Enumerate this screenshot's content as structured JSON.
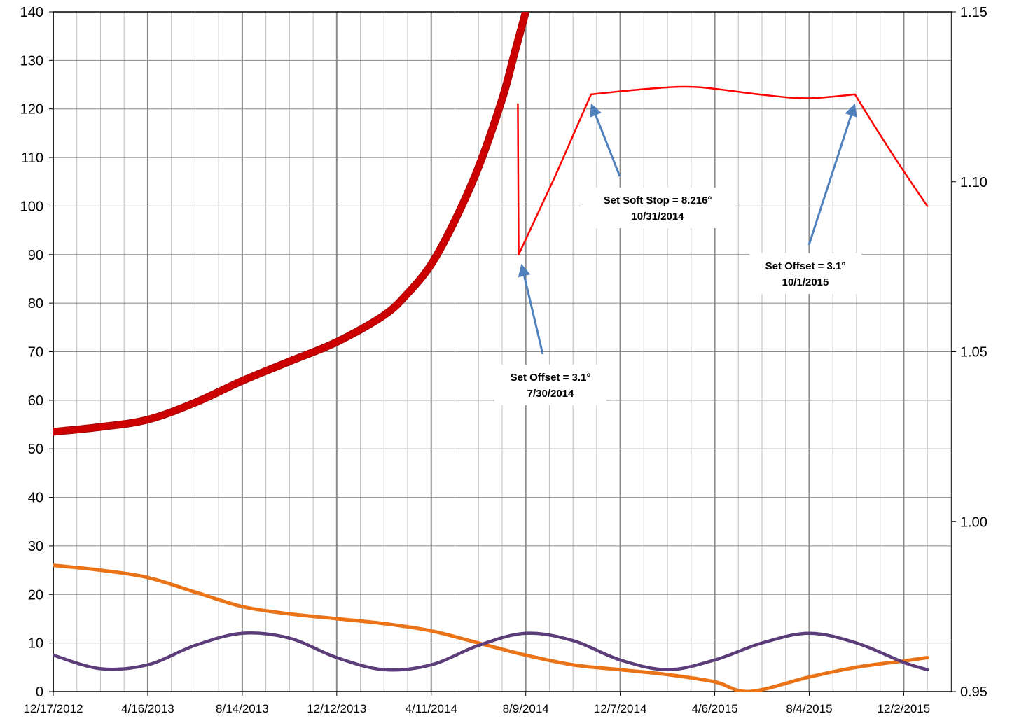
{
  "chart_data": {
    "type": "line",
    "title": "",
    "xlabel": "",
    "ylabel": "",
    "y2label": "",
    "grid": true,
    "legend": "none",
    "xlim": [
      "2012-12-17",
      "2016-02-01"
    ],
    "ylim": [
      0,
      140
    ],
    "y2lim": [
      0.95,
      1.15
    ],
    "x_tick_labels": [
      "12/17/2012",
      "4/16/2013",
      "8/14/2013",
      "12/12/2013",
      "4/11/2014",
      "8/9/2014",
      "12/7/2014",
      "4/6/2015",
      "8/4/2015",
      "12/2/2015"
    ],
    "y_ticks": [
      0,
      10,
      20,
      30,
      40,
      50,
      60,
      70,
      80,
      90,
      100,
      110,
      120,
      130,
      140
    ],
    "y2_tick_labels": [
      "0.95",
      "1.00",
      "1.05",
      "1.10",
      "1.15"
    ],
    "series": [
      {
        "axis": "left",
        "color": "#cc0000",
        "x": [
          "2012-12-17",
          "2013-02-15",
          "2013-04-16",
          "2013-06-15",
          "2013-08-14",
          "2013-10-13",
          "2013-12-12",
          "2014-02-10",
          "2014-03-12",
          "2014-04-11",
          "2014-05-11",
          "2014-06-10",
          "2014-07-10",
          "2014-07-25",
          "2014-08-09",
          "2014-08-15"
        ],
        "values": [
          53.5,
          54.5,
          56,
          59.5,
          64,
          68,
          72,
          77.5,
          82,
          88,
          97,
          108,
          122,
          131,
          140,
          143
        ]
      },
      {
        "axis": "left",
        "color": "#ff0000",
        "x": [
          "2014-07-30",
          "2014-07-31",
          "2014-09-15",
          "2014-10-31",
          "2015-01-15",
          "2015-03-15",
          "2015-06-01",
          "2015-08-01",
          "2015-10-01",
          "2015-11-15",
          "2016-01-01"
        ],
        "values": [
          121,
          90,
          106,
          123,
          124.2,
          124.5,
          123,
          122.2,
          123,
          111,
          100
        ]
      },
      {
        "axis": "left",
        "color": "#e97316",
        "x": [
          "2012-12-17",
          "2013-02-15",
          "2013-04-16",
          "2013-06-15",
          "2013-08-14",
          "2013-10-13",
          "2013-12-12",
          "2014-02-10",
          "2014-04-11",
          "2014-06-10",
          "2014-08-09",
          "2014-10-08",
          "2014-12-07",
          "2015-02-05",
          "2015-04-06",
          "2015-05-20",
          "2015-08-04",
          "2015-10-03",
          "2015-12-02",
          "2016-01-01"
        ],
        "values": [
          26,
          25,
          23.5,
          20.5,
          17.5,
          16,
          15,
          14,
          12.5,
          10,
          7.5,
          5.5,
          4.5,
          3.5,
          2,
          0,
          3,
          5,
          6.3,
          7
        ]
      },
      {
        "axis": "left",
        "color": "#5c3d7a",
        "x": [
          "2012-12-17",
          "2013-02-15",
          "2013-04-16",
          "2013-06-15",
          "2013-08-14",
          "2013-10-13",
          "2013-12-12",
          "2014-02-10",
          "2014-04-11",
          "2014-06-10",
          "2014-08-09",
          "2014-10-08",
          "2014-12-07",
          "2015-02-05",
          "2015-04-06",
          "2015-06-05",
          "2015-08-04",
          "2015-10-03",
          "2015-12-02",
          "2016-01-01"
        ],
        "values": [
          7.5,
          4.7,
          5.5,
          9.5,
          12,
          11,
          7,
          4.5,
          5.5,
          9.5,
          12,
          10.5,
          6.5,
          4.5,
          6.5,
          10,
          12,
          10,
          6,
          4.5
        ]
      }
    ],
    "annotations": [
      {
        "lines": [
          "Set Offset = 3.1°",
          "7/30/2014"
        ],
        "arrow_x": "2014-07-30",
        "arrow_y": 89
      },
      {
        "lines": [
          "Set Soft  Stop = 8.216°",
          "10/31/2014"
        ],
        "arrow_x": "2014-10-31",
        "arrow_y": 122
      },
      {
        "lines": [
          "Set Offset = 3.1°",
          "10/1/2015"
        ],
        "arrow_x": "2015-10-01",
        "arrow_y": 122
      }
    ]
  }
}
